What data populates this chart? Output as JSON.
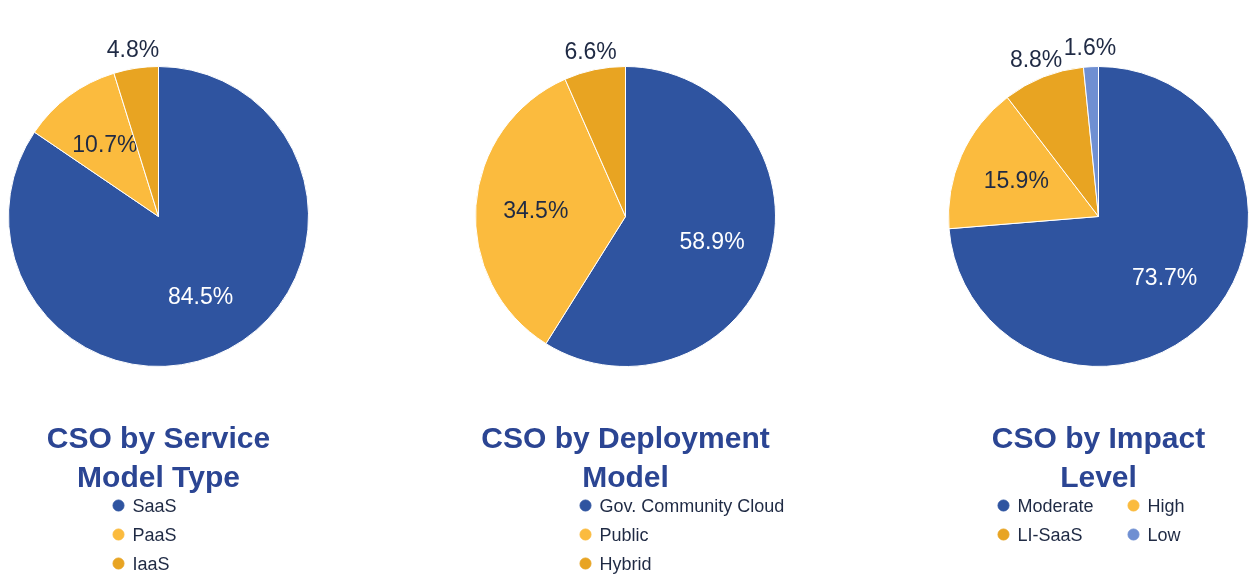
{
  "chart_data": [
    {
      "type": "pie",
      "title": "CSO by Service Model Type",
      "categories": [
        "SaaS",
        "PaaS",
        "IaaS"
      ],
      "values": [
        84.5,
        10.7,
        4.8
      ],
      "colors": [
        "#2f54a0",
        "#fbbb3e",
        "#e8a422"
      ],
      "value_labels": [
        "84.5%",
        "10.7%",
        "4.8%"
      ],
      "legend": "bottom"
    },
    {
      "type": "pie",
      "title": "CSO by Deployment Model",
      "categories": [
        "Gov. Community Cloud",
        "Public",
        "Hybrid"
      ],
      "values": [
        58.9,
        34.5,
        6.6
      ],
      "colors": [
        "#2f54a0",
        "#fbbb3e",
        "#e8a422"
      ],
      "value_labels": [
        "58.9%",
        "34.5%",
        "6.6%"
      ],
      "legend": "bottom"
    },
    {
      "type": "pie",
      "title": "CSO by Impact Level",
      "categories": [
        "Moderate",
        "High",
        "LI-SaaS",
        "Low"
      ],
      "values": [
        73.7,
        15.9,
        8.8,
        1.6
      ],
      "colors": [
        "#2f54a0",
        "#fbbb3e",
        "#e8a422",
        "#6f8fd2"
      ],
      "value_labels": [
        "73.7%",
        "15.9%",
        "8.8%",
        "1.6%"
      ],
      "legend": "bottom"
    }
  ]
}
